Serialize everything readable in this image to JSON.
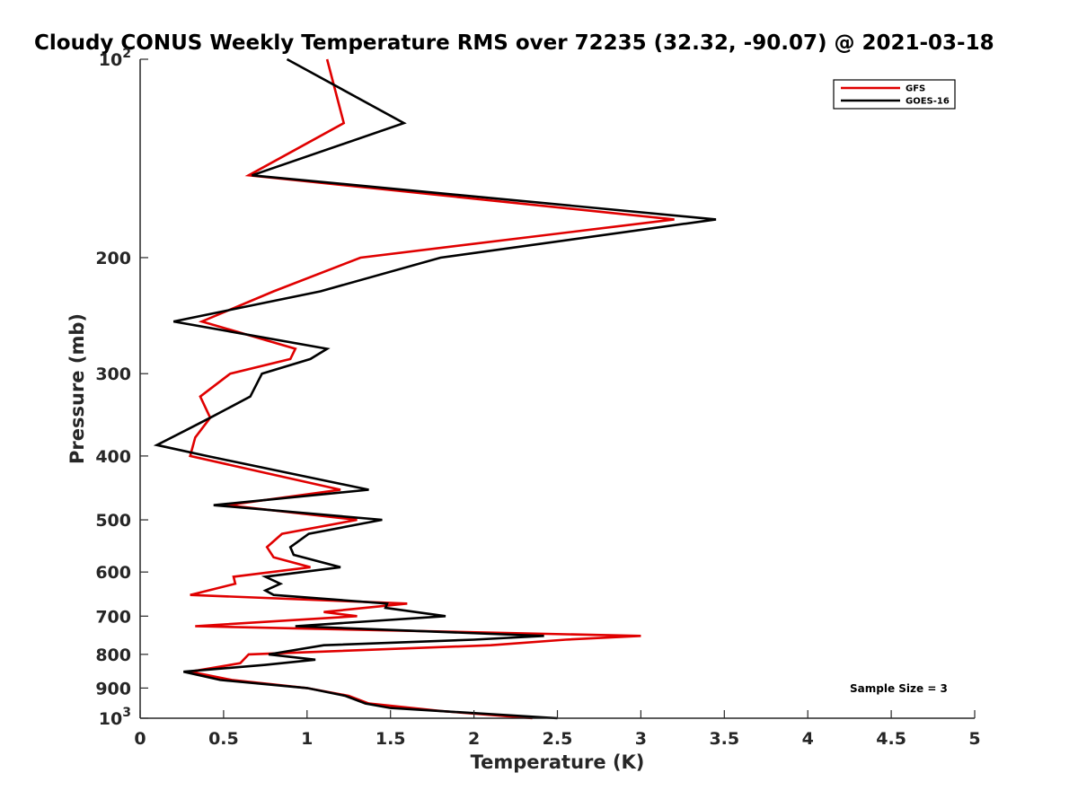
{
  "chart_data": {
    "type": "line",
    "title": "Cloudy CONUS Weekly Temperature RMS over 72235 (32.32, -90.07) @ 2021-03-18",
    "xlabel": "Temperature (K)",
    "ylabel": "Pressure (mb)",
    "xlim": [
      0,
      5
    ],
    "ylim": [
      100,
      1000
    ],
    "y_scale": "log",
    "y_reversed": true,
    "grid": false,
    "legend_position": "top-right",
    "x_ticks": [
      0,
      0.5,
      1,
      1.5,
      2,
      2.5,
      3,
      3.5,
      4,
      4.5,
      5
    ],
    "x_tick_labels": [
      "0",
      "0.5",
      "1",
      "1.5",
      "2",
      "2.5",
      "3",
      "3.5",
      "4",
      "4.5",
      "5"
    ],
    "y_ticks": [
      100,
      200,
      300,
      400,
      500,
      600,
      700,
      800,
      900,
      1000
    ],
    "y_tick_labels": [
      {
        "base": "10",
        "exp": "2"
      },
      {
        "base": "200",
        "exp": ""
      },
      {
        "base": "300",
        "exp": ""
      },
      {
        "base": "400",
        "exp": ""
      },
      {
        "base": "500",
        "exp": ""
      },
      {
        "base": "600",
        "exp": ""
      },
      {
        "base": "700",
        "exp": ""
      },
      {
        "base": "800",
        "exp": ""
      },
      {
        "base": "900",
        "exp": ""
      },
      {
        "base": "10",
        "exp": "3"
      }
    ],
    "annotation": "Sample Size = 3",
    "series": [
      {
        "name": "GFS",
        "color": "#e00000",
        "points": [
          [
            1.12,
            100
          ],
          [
            1.22,
            125
          ],
          [
            0.65,
            150
          ],
          [
            3.2,
            175
          ],
          [
            1.32,
            200
          ],
          [
            0.8,
            225
          ],
          [
            0.37,
            250
          ],
          [
            0.93,
            275
          ],
          [
            0.9,
            285
          ],
          [
            0.54,
            300
          ],
          [
            0.36,
            325
          ],
          [
            0.42,
            350
          ],
          [
            0.33,
            375
          ],
          [
            0.3,
            400
          ],
          [
            1.2,
            450
          ],
          [
            0.52,
            475
          ],
          [
            1.3,
            500
          ],
          [
            0.85,
            525
          ],
          [
            0.76,
            550
          ],
          [
            0.8,
            570
          ],
          [
            1.02,
            590
          ],
          [
            0.56,
            610
          ],
          [
            0.57,
            625
          ],
          [
            0.3,
            650
          ],
          [
            1.6,
            670
          ],
          [
            1.1,
            690
          ],
          [
            1.3,
            700
          ],
          [
            0.33,
            725
          ],
          [
            3.0,
            750
          ],
          [
            2.55,
            760
          ],
          [
            2.1,
            775
          ],
          [
            0.65,
            800
          ],
          [
            0.6,
            825
          ],
          [
            0.3,
            850
          ],
          [
            0.55,
            875
          ],
          [
            1.0,
            900
          ],
          [
            1.25,
            925
          ],
          [
            1.37,
            950
          ],
          [
            1.8,
            975
          ],
          [
            2.35,
            1000
          ]
        ]
      },
      {
        "name": "GOES-16",
        "color": "#000000",
        "points": [
          [
            0.88,
            100
          ],
          [
            1.58,
            125
          ],
          [
            0.67,
            150
          ],
          [
            3.45,
            175
          ],
          [
            1.8,
            200
          ],
          [
            1.08,
            225
          ],
          [
            0.2,
            250
          ],
          [
            1.12,
            275
          ],
          [
            1.02,
            285
          ],
          [
            0.73,
            300
          ],
          [
            0.66,
            325
          ],
          [
            0.42,
            350
          ],
          [
            0.28,
            365
          ],
          [
            0.1,
            385
          ],
          [
            0.4,
            400
          ],
          [
            1.37,
            450
          ],
          [
            0.44,
            475
          ],
          [
            1.45,
            500
          ],
          [
            1.01,
            525
          ],
          [
            0.9,
            550
          ],
          [
            0.92,
            565
          ],
          [
            1.2,
            590
          ],
          [
            0.75,
            610
          ],
          [
            0.84,
            625
          ],
          [
            0.75,
            640
          ],
          [
            0.8,
            650
          ],
          [
            1.48,
            670
          ],
          [
            1.47,
            680
          ],
          [
            1.83,
            700
          ],
          [
            0.93,
            725
          ],
          [
            2.42,
            750
          ],
          [
            2.0,
            760
          ],
          [
            1.1,
            775
          ],
          [
            0.77,
            800
          ],
          [
            1.05,
            815
          ],
          [
            0.75,
            830
          ],
          [
            0.26,
            850
          ],
          [
            0.48,
            875
          ],
          [
            1.0,
            900
          ],
          [
            1.23,
            925
          ],
          [
            1.35,
            950
          ],
          [
            1.5,
            965
          ],
          [
            2.5,
            1000
          ]
        ]
      }
    ]
  }
}
